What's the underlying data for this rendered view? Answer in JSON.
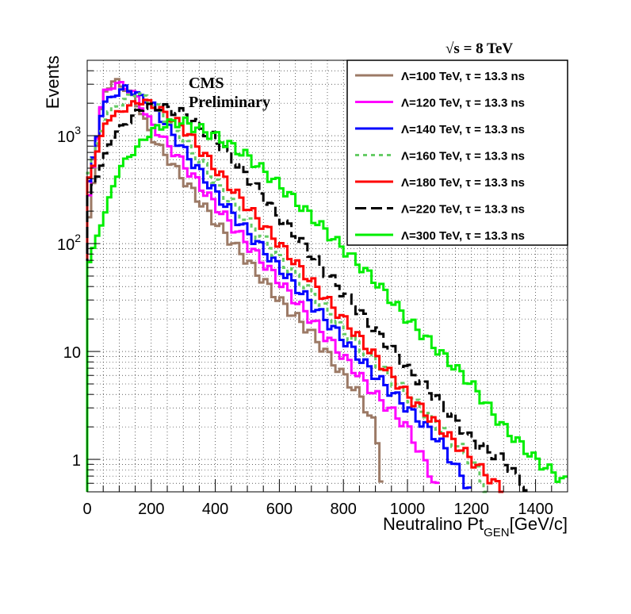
{
  "chart_data": {
    "type": "line",
    "xlabel": "Neutralino Pt",
    "xlabel_sub": "GEN",
    "xlabel_unit": "[GeV/c]",
    "ylabel": "Events",
    "xlim": [
      0,
      1500
    ],
    "ylim": [
      0.5,
      5000
    ],
    "yscale": "log",
    "grid": true,
    "x_ticks": [
      "0",
      "200",
      "400",
      "600",
      "800",
      "1000",
      "1200",
      "1400"
    ],
    "y_ticks": [
      {
        "value": 1,
        "label": "1"
      },
      {
        "value": 10,
        "label": "10"
      },
      {
        "value": 100,
        "label": "10",
        "sup": "2"
      },
      {
        "value": 1000,
        "label": "10",
        "sup": "3"
      }
    ],
    "energy": {
      "prefix": "√s",
      "text": " = 8 TeV"
    },
    "annotation": [
      "CMS",
      "Preliminary"
    ],
    "legend_position": "top-right",
    "series": [
      {
        "name": "Λ=100 TeV, τ = 13.3 ns",
        "color": "#9c7a66",
        "dash": "solid",
        "x": [
          0,
          50,
          90,
          150,
          200,
          300,
          400,
          500,
          600,
          700,
          800,
          850,
          900,
          925
        ],
        "y": [
          120,
          2500,
          3300,
          2200,
          1000,
          400,
          160,
          70,
          30,
          15,
          6,
          4,
          2,
          0.5
        ]
      },
      {
        "name": "Λ=120 TeV, τ = 13.3 ns",
        "color": "#ff00ff",
        "dash": "solid",
        "x": [
          0,
          50,
          100,
          150,
          200,
          300,
          400,
          500,
          600,
          700,
          800,
          900,
          1000,
          1050,
          1100
        ],
        "y": [
          200,
          2500,
          3100,
          2400,
          1300,
          550,
          230,
          100,
          45,
          20,
          9,
          4,
          2,
          1,
          0.5
        ]
      },
      {
        "name": "Λ=140 TeV, τ = 13.3 ns",
        "color": "#0000ff",
        "dash": "solid",
        "x": [
          0,
          50,
          120,
          200,
          300,
          400,
          500,
          600,
          700,
          800,
          900,
          1000,
          1100,
          1200
        ],
        "y": [
          300,
          2000,
          2800,
          2000,
          750,
          300,
          130,
          60,
          28,
          13,
          6,
          3,
          1.5,
          0.5
        ]
      },
      {
        "name": "Λ=160 TeV, τ = 13.3 ns",
        "color": "#66cc66",
        "dash": "dotted",
        "x": [
          0,
          60,
          150,
          200,
          300,
          400,
          500,
          600,
          700,
          800,
          900,
          1000,
          1100,
          1200,
          1250
        ],
        "y": [
          400,
          1600,
          2500,
          2100,
          950,
          380,
          160,
          75,
          35,
          16,
          8,
          4,
          2,
          1,
          0.5
        ]
      },
      {
        "name": "Λ=180 TeV, τ = 13.3 ns",
        "color": "#ff0000",
        "dash": "solid",
        "x": [
          0,
          60,
          160,
          200,
          300,
          400,
          500,
          600,
          700,
          800,
          900,
          1000,
          1100,
          1200,
          1300
        ],
        "y": [
          350,
          1400,
          2100,
          2000,
          1200,
          500,
          220,
          100,
          45,
          20,
          9,
          4,
          2,
          1,
          0.5
        ]
      },
      {
        "name": "Λ=220 TeV, τ = 13.3 ns",
        "color": "#000000",
        "dash": "dashed",
        "x": [
          0,
          80,
          180,
          250,
          300,
          400,
          500,
          600,
          700,
          800,
          900,
          1000,
          1100,
          1200,
          1300,
          1380
        ],
        "y": [
          250,
          1000,
          1900,
          1800,
          1600,
          950,
          420,
          180,
          80,
          35,
          16,
          7,
          3.5,
          1.5,
          1,
          0.5
        ]
      },
      {
        "name": "Λ=300 TeV, τ = 13.3 ns",
        "color": "#00ee00",
        "dash": "solid",
        "x": [
          0,
          100,
          200,
          250,
          300,
          400,
          500,
          600,
          700,
          800,
          900,
          1000,
          1100,
          1200,
          1300,
          1400,
          1500
        ],
        "y": [
          60,
          500,
          1100,
          1300,
          1350,
          1000,
          650,
          350,
          180,
          90,
          45,
          20,
          10,
          5,
          2,
          1,
          0.6
        ]
      }
    ]
  }
}
